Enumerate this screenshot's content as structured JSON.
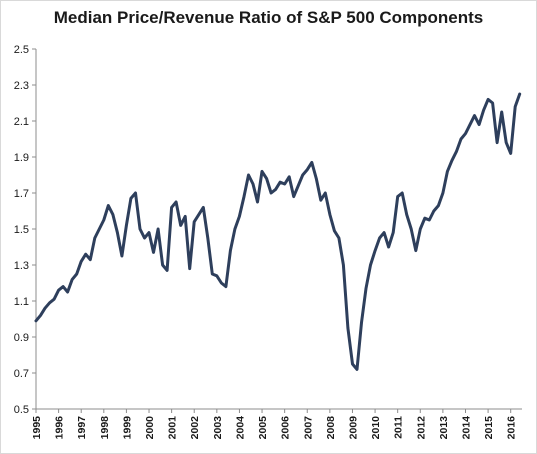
{
  "chart_data": {
    "type": "line",
    "title": "Median Price/Revenue Ratio of S&P 500 Components",
    "xlabel": "",
    "ylabel": "",
    "x_ticks": [
      "1995",
      "1996",
      "1997",
      "1998",
      "1999",
      "2000",
      "2001",
      "2002",
      "2003",
      "2004",
      "2005",
      "2006",
      "2007",
      "2008",
      "2009",
      "2010",
      "2011",
      "2012",
      "2013",
      "2014",
      "2015",
      "2016"
    ],
    "y_ticks": [
      "0.5",
      "0.7",
      "0.9",
      "1.1",
      "1.3",
      "1.5",
      "1.7",
      "1.9",
      "2.1",
      "2.3",
      "2.5"
    ],
    "xlim": [
      1995.0,
      2016.5
    ],
    "ylim": [
      0.5,
      2.5
    ],
    "grid": false,
    "line_color": "#2e3f5c",
    "series": [
      {
        "x": [
          1995.0,
          1995.2,
          1995.4,
          1995.6,
          1995.8,
          1996.0,
          1996.2,
          1996.4,
          1996.6,
          1996.8,
          1997.0,
          1997.2,
          1997.4,
          1997.6,
          1997.8,
          1998.0,
          1998.2,
          1998.4,
          1998.6,
          1998.8,
          1999.0,
          1999.2,
          1999.4,
          1999.6,
          1999.8,
          2000.0,
          2000.2,
          2000.4,
          2000.6,
          2000.8,
          2001.0,
          2001.2,
          2001.4,
          2001.6,
          2001.8,
          2002.0,
          2002.2,
          2002.4,
          2002.6,
          2002.8,
          2003.0,
          2003.2,
          2003.4,
          2003.6,
          2003.8,
          2004.0,
          2004.2,
          2004.4,
          2004.6,
          2004.8,
          2005.0,
          2005.2,
          2005.4,
          2005.6,
          2005.8,
          2006.0,
          2006.2,
          2006.4,
          2006.6,
          2006.8,
          2007.0,
          2007.2,
          2007.4,
          2007.6,
          2007.8,
          2008.0,
          2008.2,
          2008.4,
          2008.6,
          2008.8,
          2009.0,
          2009.2,
          2009.4,
          2009.6,
          2009.8,
          2010.0,
          2010.2,
          2010.4,
          2010.6,
          2010.8,
          2011.0,
          2011.2,
          2011.4,
          2011.6,
          2011.8,
          2012.0,
          2012.2,
          2012.4,
          2012.6,
          2012.8,
          2013.0,
          2013.2,
          2013.4,
          2013.6,
          2013.8,
          2014.0,
          2014.2,
          2014.4,
          2014.6,
          2014.8,
          2015.0,
          2015.2,
          2015.4,
          2015.6,
          2015.8,
          2016.0,
          2016.2,
          2016.4
        ],
        "y": [
          0.99,
          1.02,
          1.06,
          1.09,
          1.11,
          1.16,
          1.18,
          1.15,
          1.22,
          1.25,
          1.32,
          1.36,
          1.33,
          1.45,
          1.5,
          1.55,
          1.63,
          1.58,
          1.48,
          1.35,
          1.52,
          1.67,
          1.7,
          1.5,
          1.45,
          1.48,
          1.37,
          1.5,
          1.3,
          1.27,
          1.62,
          1.65,
          1.52,
          1.57,
          1.28,
          1.54,
          1.58,
          1.62,
          1.45,
          1.25,
          1.24,
          1.2,
          1.18,
          1.38,
          1.5,
          1.57,
          1.68,
          1.8,
          1.75,
          1.65,
          1.82,
          1.78,
          1.7,
          1.72,
          1.76,
          1.75,
          1.79,
          1.68,
          1.74,
          1.8,
          1.83,
          1.87,
          1.78,
          1.66,
          1.7,
          1.58,
          1.49,
          1.45,
          1.3,
          0.95,
          0.75,
          0.72,
          0.98,
          1.17,
          1.3,
          1.38,
          1.45,
          1.48,
          1.4,
          1.48,
          1.68,
          1.7,
          1.58,
          1.5,
          1.38,
          1.5,
          1.56,
          1.55,
          1.6,
          1.63,
          1.7,
          1.82,
          1.88,
          1.93,
          2.0,
          2.03,
          2.08,
          2.13,
          2.08,
          2.16,
          2.22,
          2.2,
          1.98,
          2.15,
          1.98,
          1.92,
          2.18,
          2.25
        ]
      }
    ]
  }
}
